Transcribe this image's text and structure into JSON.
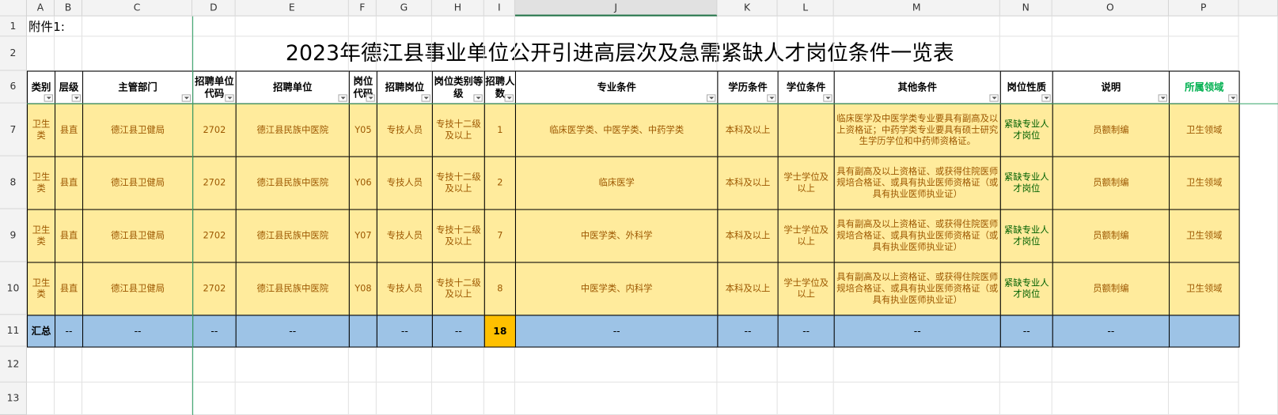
{
  "column_letters": [
    "A",
    "B",
    "C",
    "D",
    "E",
    "F",
    "G",
    "H",
    "I",
    "J",
    "K",
    "L",
    "M",
    "N",
    "O",
    "P"
  ],
  "row_numbers": [
    1,
    2,
    6,
    7,
    8,
    9,
    10,
    11,
    12,
    13
  ],
  "note": "附件1:",
  "title": "2023年德江县事业单位公开引进高层次及急需紧缺人才岗位条件一览表",
  "table": {
    "headers": [
      "类别",
      "层级",
      "主管部门",
      "招聘单位代码",
      "招聘单位",
      "岗位代码",
      "招聘岗位",
      "岗位类别等级",
      "招聘人数",
      "专业条件",
      "学历条件",
      "学位条件",
      "其他条件",
      "岗位性质",
      "说明",
      "所属领域"
    ],
    "rows": [
      [
        "卫生类",
        "县直",
        "德江县卫健局",
        "2702",
        "德江县民族中医院",
        "Y05",
        "专技人员",
        "专技十二级及以上",
        1,
        "临床医学类、中医学类、中药学类",
        "本科及以上",
        null,
        "临床医学及中医学类专业要具有副高及以上资格证；中药学类专业要具有硕士研究生学历学位和中药师资格证。",
        "紧缺专业人才岗位",
        "员额制编",
        "卫生领域"
      ],
      [
        "卫生类",
        "县直",
        "德江县卫健局",
        "2702",
        "德江县民族中医院",
        "Y06",
        "专技人员",
        "专技十二级及以上",
        2,
        "临床医学",
        "本科及以上",
        "学士学位及以上",
        "具有副高及以上资格证、或获得住院医师规培合格证、或具有执业医师资格证（或具有执业医师执业证）",
        "紧缺专业人才岗位",
        "员额制编",
        "卫生领域"
      ],
      [
        "卫生类",
        "县直",
        "德江县卫健局",
        "2702",
        "德江县民族中医院",
        "Y07",
        "专技人员",
        "专技十二级及以上",
        7,
        "中医学类、外科学",
        "本科及以上",
        "学士学位及以上",
        "具有副高及以上资格证、或获得住院医师规培合格证、或具有执业医师资格证（或具有执业医师执业证）",
        "紧缺专业人才岗位",
        "员额制编",
        "卫生领域"
      ],
      [
        "卫生类",
        "县直",
        "德江县卫健局",
        "2702",
        "德江县民族中医院",
        "Y08",
        "专技人员",
        "专技十二级及以上",
        8,
        "中医学类、内科学",
        "本科及以上",
        "学士学位及以上",
        "具有副高及以上资格证、或获得住院医师规培合格证、或具有执业医师资格证（或具有执业医师执业证）",
        "紧缺专业人才岗位",
        "员额制编",
        "卫生领域"
      ]
    ],
    "summary": [
      "汇总",
      "--",
      "--",
      "--",
      "--",
      null,
      "--",
      "--",
      18,
      "--",
      "--",
      "--",
      "--",
      "--",
      "--",
      null
    ]
  }
}
